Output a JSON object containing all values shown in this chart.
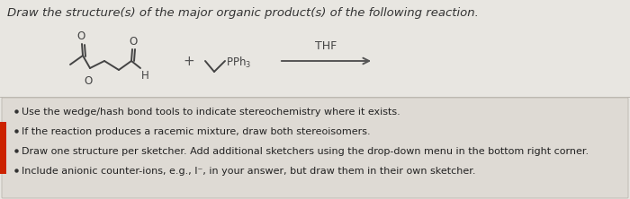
{
  "title": "Draw the structure(s) of the major organic product(s) of the following reaction.",
  "title_fontsize": 9.5,
  "title_color": "#333333",
  "bg_top_color": "#e8e6e1",
  "bg_box_color": "#dedad4",
  "box_border_color": "#c0bcb5",
  "red_tab_color": "#cc2200",
  "bullet_points": [
    "Use the wedge/hash bond tools to indicate stereochemistry where it exists.",
    "If the reaction produces a racemic mixture, draw both stereoisomers.",
    "Draw one structure per sketcher. Add additional sketchers using the drop-down menu in the bottom right corner.",
    "Include anionic counter-ions, e.g., I⁻, in your answer, but draw them in their own sketcher."
  ],
  "bullet_fontsize": 8.0,
  "condition_label": "THF",
  "arrow_color": "#555555",
  "mol_color": "#444444",
  "lw": 1.4
}
